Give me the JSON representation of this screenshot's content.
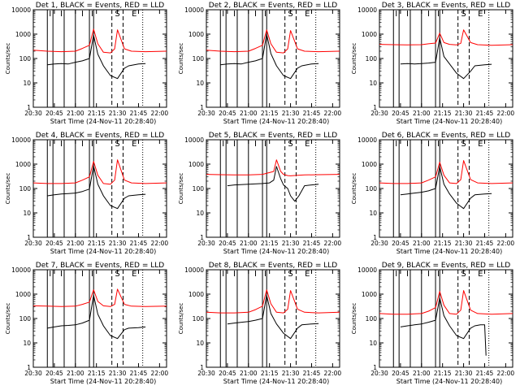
{
  "figure": {
    "ylabel": "Counts/sec",
    "xlabel": "Start Time (24-Nov-11 20:28:40)",
    "x_ticks": [
      "20:30",
      "20:45",
      "21:00",
      "21:15",
      "21:30",
      "21:45",
      "22:00"
    ],
    "y_ticks": [
      "1",
      "10",
      "100",
      "1000",
      "10000"
    ],
    "marker_labels": [
      "I",
      "I",
      "I",
      "I",
      "S",
      "E"
    ]
  },
  "chart_data": [
    {
      "type": "line",
      "title": "Det 1, BLACK = Events, RED = LLD",
      "ylabel": "Counts/sec",
      "xlabel": "Start Time (24-Nov-11 20:28:40)",
      "yscale": "log",
      "ylim": [
        1,
        10000
      ],
      "xlim": [
        "20:30",
        "22:05"
      ],
      "series": [
        {
          "color": "#000000",
          "x": [
            "20:40",
            "20:45",
            "20:50",
            "20:55",
            "21:00",
            "21:05",
            "21:10",
            "21:13",
            "21:16",
            "21:20",
            "21:25",
            "21:30",
            "21:35",
            "21:38",
            "21:45",
            "21:50"
          ],
          "values": [
            55,
            60,
            62,
            60,
            70,
            80,
            100,
            900,
            150,
            50,
            20,
            15,
            40,
            50,
            60,
            62
          ]
        },
        {
          "color": "#ff0000",
          "x": [
            "20:30",
            "20:40",
            "20:50",
            "21:00",
            "21:05",
            "21:10",
            "21:13",
            "21:16",
            "21:20",
            "21:25",
            "21:28",
            "21:30",
            "21:35",
            "21:40",
            "21:50",
            "22:05"
          ],
          "values": [
            220,
            200,
            190,
            200,
            260,
            350,
            1600,
            400,
            180,
            170,
            250,
            1500,
            250,
            200,
            190,
            200
          ]
        }
      ]
    },
    {
      "type": "line",
      "title": "Det 2, BLACK = Events, RED = LLD",
      "ylabel": "Counts/sec",
      "xlabel": "Start Time (24-Nov-11 20:28:40)",
      "yscale": "log",
      "ylim": [
        1,
        10000
      ],
      "xlim": [
        "20:30",
        "22:05"
      ],
      "series": [
        {
          "color": "#000000",
          "x": [
            "20:40",
            "20:45",
            "20:50",
            "20:55",
            "21:00",
            "21:05",
            "21:10",
            "21:13",
            "21:16",
            "21:20",
            "21:25",
            "21:30",
            "21:35",
            "21:38",
            "21:45",
            "21:50"
          ],
          "values": [
            55,
            60,
            62,
            60,
            70,
            80,
            100,
            1000,
            160,
            50,
            20,
            15,
            40,
            50,
            60,
            62
          ]
        },
        {
          "color": "#ff0000",
          "x": [
            "20:30",
            "20:40",
            "20:50",
            "21:00",
            "21:05",
            "21:10",
            "21:13",
            "21:16",
            "21:20",
            "21:25",
            "21:28",
            "21:30",
            "21:35",
            "21:40",
            "21:50",
            "22:05"
          ],
          "values": [
            220,
            200,
            190,
            200,
            260,
            350,
            1500,
            400,
            180,
            170,
            250,
            1400,
            250,
            200,
            190,
            200
          ]
        }
      ]
    },
    {
      "type": "line",
      "title": "Det 3, BLACK = Events, RED = LLD",
      "ylabel": "Counts/sec",
      "xlabel": "Start Time (24-Nov-11 20:28:40)",
      "yscale": "log",
      "ylim": [
        1,
        10000
      ],
      "xlim": [
        "20:30",
        "22:05"
      ],
      "series": [
        {
          "color": "#000000",
          "x": [
            "20:45",
            "20:50",
            "20:55",
            "21:00",
            "21:05",
            "21:10",
            "21:13",
            "21:16",
            "21:20",
            "21:25",
            "21:30",
            "21:35",
            "21:38",
            "21:45",
            "21:50"
          ],
          "values": [
            60,
            62,
            60,
            62,
            65,
            70,
            700,
            120,
            60,
            25,
            15,
            30,
            50,
            55,
            58
          ]
        },
        {
          "color": "#ff0000",
          "x": [
            "20:30",
            "20:40",
            "20:50",
            "21:00",
            "21:05",
            "21:10",
            "21:13",
            "21:16",
            "21:20",
            "21:25",
            "21:28",
            "21:30",
            "21:35",
            "21:40",
            "21:50",
            "22:05"
          ],
          "values": [
            380,
            370,
            360,
            370,
            400,
            430,
            1100,
            450,
            380,
            360,
            420,
            1500,
            450,
            370,
            350,
            370
          ]
        }
      ]
    },
    {
      "type": "line",
      "title": "Det 4, BLACK = Events, RED = LLD",
      "ylabel": "Counts/sec",
      "xlabel": "Start Time (24-Nov-11 20:28:40)",
      "yscale": "log",
      "ylim": [
        1,
        10000
      ],
      "xlim": [
        "20:30",
        "22:05"
      ],
      "series": [
        {
          "color": "#000000",
          "x": [
            "20:40",
            "20:45",
            "20:50",
            "20:55",
            "21:00",
            "21:05",
            "21:10",
            "21:13",
            "21:16",
            "21:20",
            "21:25",
            "21:30",
            "21:35",
            "21:38",
            "21:45",
            "21:50"
          ],
          "values": [
            50,
            55,
            60,
            62,
            65,
            75,
            95,
            850,
            150,
            50,
            20,
            15,
            40,
            50,
            55,
            58
          ]
        },
        {
          "color": "#ff0000",
          "x": [
            "20:30",
            "20:40",
            "20:50",
            "21:00",
            "21:05",
            "21:10",
            "21:13",
            "21:16",
            "21:20",
            "21:25",
            "21:28",
            "21:30",
            "21:35",
            "21:40",
            "21:50",
            "22:05"
          ],
          "values": [
            170,
            160,
            160,
            170,
            220,
            300,
            1300,
            350,
            160,
            150,
            220,
            1500,
            220,
            170,
            160,
            170
          ]
        }
      ]
    },
    {
      "type": "line",
      "title": "Det 5, BLACK = Events, RED = LLD",
      "ylabel": "Counts/sec",
      "xlabel": "Start Time (24-Nov-11 20:28:40)",
      "yscale": "log",
      "ylim": [
        1,
        10000
      ],
      "xlim": [
        "20:30",
        "22:05"
      ],
      "series": [
        {
          "color": "#000000",
          "x": [
            "20:45",
            "20:50",
            "21:00",
            "21:10",
            "21:15",
            "21:18",
            "21:20",
            "21:23",
            "21:25",
            "21:28",
            "21:30",
            "21:33",
            "21:36",
            "21:40",
            "21:45",
            "21:50"
          ],
          "values": [
            130,
            140,
            150,
            160,
            170,
            220,
            800,
            250,
            140,
            100,
            50,
            30,
            50,
            130,
            140,
            150
          ]
        },
        {
          "color": "#ff0000",
          "x": [
            "20:30",
            "20:40",
            "20:50",
            "21:00",
            "21:10",
            "21:15",
            "21:18",
            "21:20",
            "21:23",
            "21:25",
            "21:28",
            "21:30",
            "21:35",
            "21:40",
            "21:50",
            "22:05"
          ],
          "values": [
            380,
            370,
            360,
            360,
            380,
            450,
            500,
            1500,
            500,
            380,
            340,
            330,
            350,
            360,
            370,
            380
          ]
        }
      ]
    },
    {
      "type": "line",
      "title": "Det 6, BLACK = Events, RED = LLD",
      "ylabel": "Counts/sec",
      "xlabel": "Start Time (24-Nov-11 20:28:40)",
      "yscale": "log",
      "ylim": [
        1,
        10000
      ],
      "xlim": [
        "20:30",
        "22:05"
      ],
      "series": [
        {
          "color": "#000000",
          "x": [
            "20:45",
            "20:50",
            "20:55",
            "21:00",
            "21:05",
            "21:10",
            "21:13",
            "21:16",
            "21:20",
            "21:25",
            "21:30",
            "21:35",
            "21:38",
            "21:45",
            "21:50"
          ],
          "values": [
            55,
            60,
            65,
            70,
            80,
            100,
            800,
            150,
            60,
            25,
            15,
            40,
            55,
            60,
            62
          ]
        },
        {
          "color": "#ff0000",
          "x": [
            "20:30",
            "20:40",
            "20:50",
            "21:00",
            "21:05",
            "21:10",
            "21:13",
            "21:16",
            "21:20",
            "21:25",
            "21:28",
            "21:30",
            "21:35",
            "21:40",
            "21:50",
            "22:05"
          ],
          "values": [
            170,
            160,
            160,
            170,
            220,
            300,
            1200,
            350,
            170,
            160,
            230,
            1400,
            230,
            170,
            160,
            170
          ]
        }
      ]
    },
    {
      "type": "line",
      "title": "Det 7, BLACK = Events, RED = LLD",
      "ylabel": "Counts/sec",
      "xlabel": "Start Time (24-Nov-11 20:28:40)",
      "yscale": "log",
      "ylim": [
        1,
        10000
      ],
      "xlim": [
        "20:30",
        "22:05"
      ],
      "series": [
        {
          "color": "#000000",
          "x": [
            "20:40",
            "20:45",
            "20:50",
            "20:55",
            "21:00",
            "21:05",
            "21:10",
            "21:13",
            "21:16",
            "21:20",
            "21:25",
            "21:30",
            "21:35",
            "21:38",
            "21:45",
            "21:50"
          ],
          "values": [
            40,
            45,
            50,
            52,
            55,
            65,
            85,
            900,
            150,
            50,
            20,
            15,
            35,
            40,
            42,
            45
          ]
        },
        {
          "color": "#ff0000",
          "x": [
            "20:30",
            "20:40",
            "20:50",
            "21:00",
            "21:05",
            "21:10",
            "21:13",
            "21:16",
            "21:20",
            "21:25",
            "21:28",
            "21:30",
            "21:35",
            "21:40",
            "21:50",
            "22:05"
          ],
          "values": [
            330,
            320,
            310,
            320,
            380,
            470,
            1500,
            500,
            330,
            310,
            380,
            1600,
            380,
            320,
            310,
            320
          ]
        }
      ]
    },
    {
      "type": "line",
      "title": "Det 8, BLACK = Events, RED = LLD",
      "ylabel": "Counts/sec",
      "xlabel": "Start Time (24-Nov-11 20:28:40)",
      "yscale": "log",
      "ylim": [
        1,
        10000
      ],
      "xlim": [
        "20:30",
        "22:05"
      ],
      "series": [
        {
          "color": "#000000",
          "x": [
            "20:45",
            "20:50",
            "20:55",
            "21:00",
            "21:05",
            "21:10",
            "21:13",
            "21:16",
            "21:20",
            "21:25",
            "21:30",
            "21:35",
            "21:38",
            "21:45",
            "21:50"
          ],
          "values": [
            60,
            65,
            70,
            75,
            85,
            100,
            900,
            160,
            60,
            25,
            15,
            40,
            55,
            60,
            62
          ]
        },
        {
          "color": "#ff0000",
          "x": [
            "20:30",
            "20:40",
            "20:50",
            "21:00",
            "21:05",
            "21:10",
            "21:13",
            "21:16",
            "21:20",
            "21:25",
            "21:28",
            "21:30",
            "21:35",
            "21:40",
            "21:50",
            "22:05"
          ],
          "values": [
            180,
            170,
            170,
            180,
            230,
            320,
            1500,
            400,
            180,
            170,
            240,
            1400,
            240,
            180,
            170,
            180
          ]
        }
      ]
    },
    {
      "type": "line",
      "title": "Det 9, BLACK = Events, RED = LLD",
      "ylabel": "Counts/sec",
      "xlabel": "Start Time (24-Nov-11 20:28:40)",
      "yscale": "log",
      "ylim": [
        1,
        10000
      ],
      "xlim": [
        "20:30",
        "22:05"
      ],
      "series": [
        {
          "color": "#000000",
          "x": [
            "20:45",
            "20:50",
            "20:55",
            "21:00",
            "21:05",
            "21:10",
            "21:13",
            "21:16",
            "21:20",
            "21:25",
            "21:30",
            "21:35",
            "21:38",
            "21:42",
            "21:45",
            "21:46"
          ],
          "values": [
            45,
            50,
            55,
            60,
            70,
            85,
            700,
            130,
            50,
            20,
            15,
            40,
            50,
            55,
            55,
            3
          ]
        },
        {
          "color": "#ff0000",
          "x": [
            "20:30",
            "20:40",
            "20:50",
            "21:00",
            "21:05",
            "21:10",
            "21:13",
            "21:16",
            "21:20",
            "21:25",
            "21:28",
            "21:30",
            "21:35",
            "21:40",
            "21:50",
            "22:05"
          ],
          "values": [
            160,
            150,
            150,
            160,
            200,
            280,
            1300,
            350,
            160,
            150,
            220,
            1400,
            220,
            160,
            150,
            160
          ]
        }
      ]
    }
  ]
}
